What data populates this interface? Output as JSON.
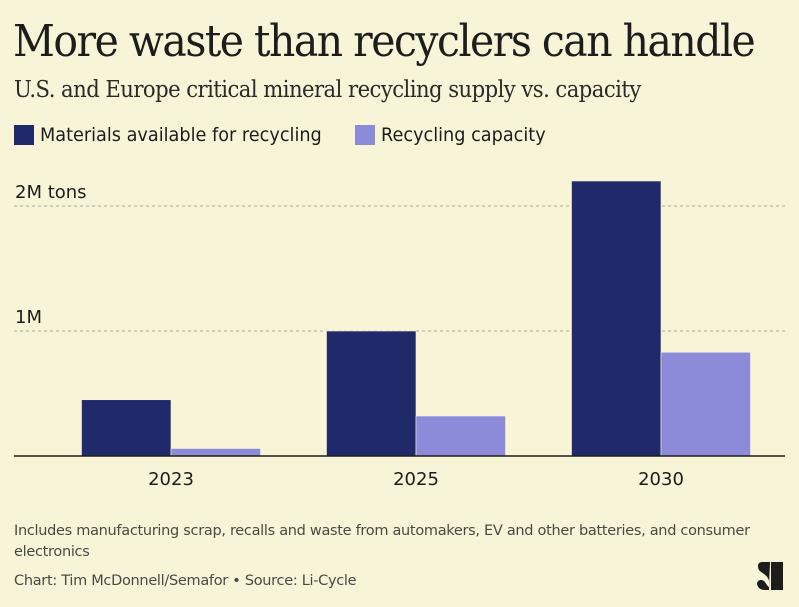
{
  "title": "More waste than recyclers can handle",
  "subtitle": "U.S. and Europe critical mineral recycling supply vs. capacity",
  "note": "Includes manufacturing scrap, recalls and waste from automakers, EV and other batteries, and consumer electronics",
  "credit": "Chart: Tim McDonnell/Semafor • Source: Li-Cycle",
  "logo": {
    "name": "semafor-logo",
    "text": "S"
  },
  "colors": {
    "background": "#f7f4d8",
    "materials": "#20296a",
    "capacity": "#8b8bd9",
    "gridline": "#a9a79a",
    "axis": "#1d1d1b"
  },
  "chart_data": {
    "type": "bar",
    "title": "More waste than recyclers can handle",
    "subtitle": "U.S. and Europe critical mineral recycling supply vs. capacity",
    "xlabel": "",
    "ylabel": "",
    "categories": [
      "2023",
      "2025",
      "2030"
    ],
    "series": [
      {
        "name": "Materials available for recycling",
        "values": [
          0.45,
          1.0,
          2.2
        ]
      },
      {
        "name": "Recycling capacity",
        "values": [
          0.06,
          0.32,
          0.83
        ]
      }
    ],
    "ylim": [
      0,
      2.2
    ],
    "units": "million tons",
    "yticks": [
      {
        "value": 1,
        "label": "1M"
      },
      {
        "value": 2,
        "label": "2M tons"
      }
    ],
    "grid": true,
    "grid_style": "dashed",
    "legend": "top-left"
  }
}
